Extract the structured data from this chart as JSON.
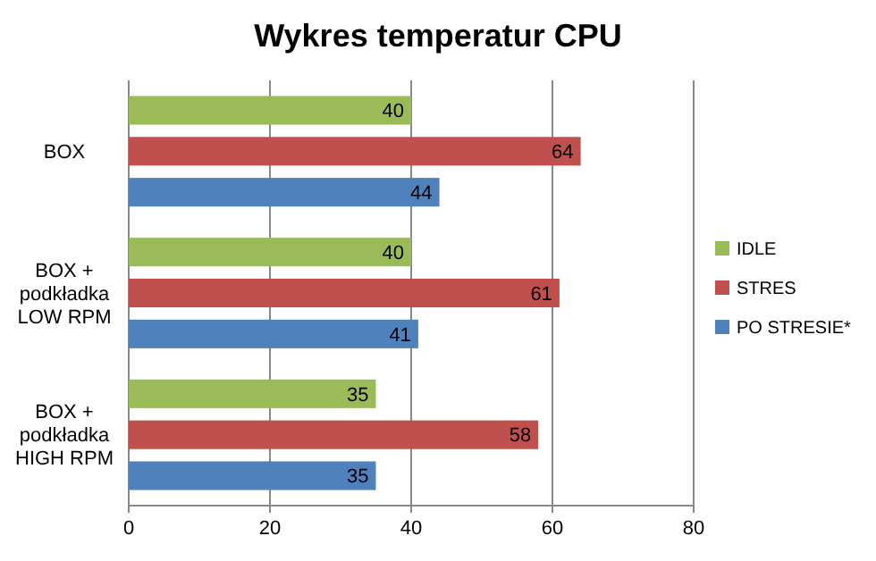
{
  "chart_data": {
    "type": "bar",
    "orientation": "horizontal",
    "title": "Wykres temperatur CPU",
    "categories": [
      "BOX",
      "BOX + podkładka LOW RPM",
      "BOX + podkładka HIGH RPM"
    ],
    "series": [
      {
        "name": "IDLE",
        "color": "#9bbb59",
        "values": [
          40,
          40,
          35
        ]
      },
      {
        "name": "STRES",
        "color": "#c0504d",
        "values": [
          64,
          61,
          58
        ]
      },
      {
        "name": "PO STRESIE*",
        "color": "#4f81bd",
        "values": [
          44,
          41,
          35
        ]
      }
    ],
    "xlim": [
      0,
      80
    ],
    "xticks": [
      0,
      20,
      40,
      60,
      80
    ],
    "grid": "x",
    "legend": "right",
    "data_labels": true
  }
}
